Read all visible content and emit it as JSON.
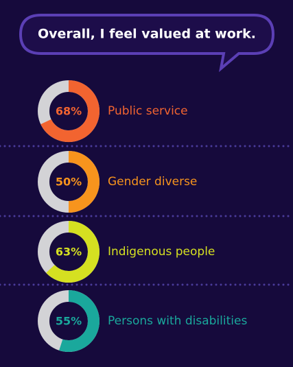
{
  "title": "Overall, I feel valued at work.",
  "chart_data": [
    {
      "type": "donut",
      "categories": [
        "Public service"
      ],
      "values": [
        68
      ],
      "value_labels": [
        "68%"
      ],
      "color": "#f26430"
    },
    {
      "type": "donut",
      "categories": [
        "Gender diverse"
      ],
      "values": [
        50
      ],
      "value_labels": [
        "50%"
      ],
      "color": "#f7941d"
    },
    {
      "type": "donut",
      "categories": [
        "Indigenous people"
      ],
      "values": [
        63
      ],
      "value_labels": [
        "63%"
      ],
      "color": "#d5e021"
    },
    {
      "type": "donut",
      "categories": [
        "Persons with disabilities"
      ],
      "values": [
        55
      ],
      "value_labels": [
        "55%"
      ],
      "color": "#1aa89c"
    }
  ]
}
